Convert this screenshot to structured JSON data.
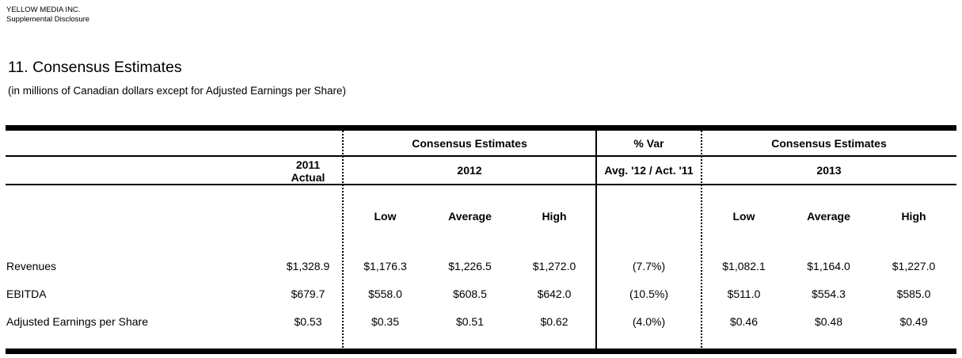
{
  "header": {
    "company": "YELLOW MEDIA INC.",
    "doc_type": "Supplemental Disclosure"
  },
  "section": {
    "title": "11. Consensus Estimates",
    "note": "(in millions of Canadian dollars except for Adjusted Earnings per Share)"
  },
  "table": {
    "groups": {
      "estimates_2012": "Consensus Estimates",
      "pct_var": "% Var",
      "estimates_2013": "Consensus Estimates"
    },
    "headers": {
      "actual_2011_line1": "2011",
      "actual_2011_line2": "Actual",
      "year_2012": "2012",
      "var_detail": "Avg. '12 / Act. '11",
      "year_2013": "2013",
      "low_2012": "Low",
      "average_2012": "Average",
      "high_2012": "High",
      "low_2013": "Low",
      "average_2013": "Average",
      "high_2013": "High"
    },
    "rows": [
      {
        "label": "Revenues",
        "actual_2011": "$1,328.9",
        "low_2012": "$1,176.3",
        "average_2012": "$1,226.5",
        "high_2012": "$1,272.0",
        "pct_var": "(7.7%)",
        "low_2013": "$1,082.1",
        "average_2013": "$1,164.0",
        "high_2013": "$1,227.0"
      },
      {
        "label": "EBITDA",
        "actual_2011": "$679.7",
        "low_2012": "$558.0",
        "average_2012": "$608.5",
        "high_2012": "$642.0",
        "pct_var": "(10.5%)",
        "low_2013": "$511.0",
        "average_2013": "$554.3",
        "high_2013": "$585.0"
      },
      {
        "label": "Adjusted Earnings per Share",
        "actual_2011": "$0.53",
        "low_2012": "$0.35",
        "average_2012": "$0.51",
        "high_2012": "$0.62",
        "pct_var": "(4.0%)",
        "low_2013": "$0.46",
        "average_2013": "$0.48",
        "high_2013": "$0.49"
      }
    ]
  },
  "colors": {
    "text": "#000000",
    "background": "#ffffff",
    "rule": "#000000"
  }
}
